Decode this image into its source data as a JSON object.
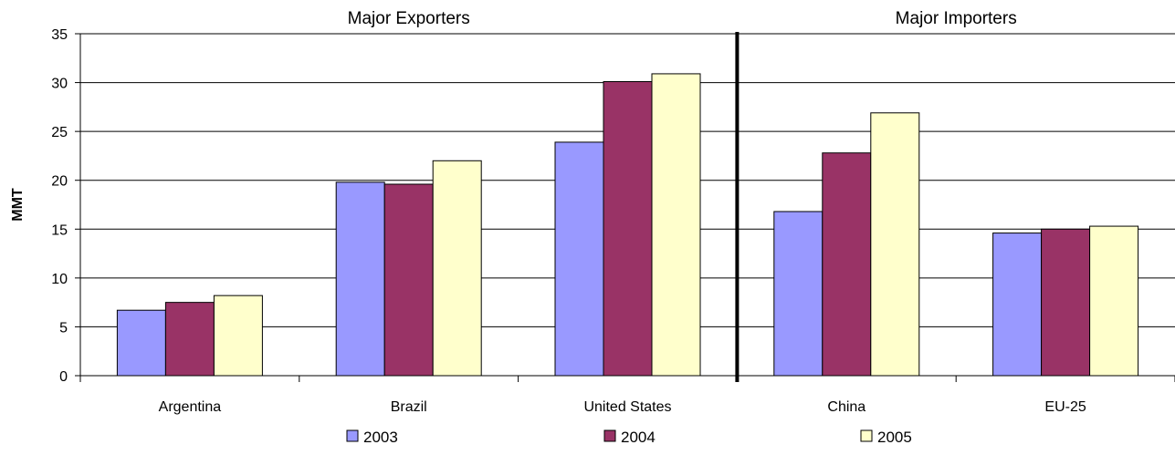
{
  "chart_data": {
    "type": "bar",
    "ylabel": "MMT",
    "ylim": [
      0,
      35
    ],
    "yticks": [
      0,
      5,
      10,
      15,
      20,
      25,
      30,
      35
    ],
    "grid": true,
    "legend": "bottom",
    "categories": [
      "Argentina",
      "Brazil",
      "United States",
      "China",
      "EU-25"
    ],
    "groups": [
      {
        "label": "Major Exporters",
        "categories": [
          "Argentina",
          "Brazil",
          "United States"
        ]
      },
      {
        "label": "Major Importers",
        "categories": [
          "China",
          "EU-25"
        ]
      }
    ],
    "series": [
      {
        "name": "2003",
        "color": "#9999ff",
        "values": [
          6.7,
          19.8,
          23.9,
          16.8,
          14.6
        ]
      },
      {
        "name": "2004",
        "color": "#993366",
        "values": [
          7.5,
          19.6,
          30.1,
          22.8,
          15.0
        ]
      },
      {
        "name": "2005",
        "color": "#ffffcc",
        "values": [
          8.2,
          22.0,
          30.9,
          26.9,
          15.3
        ]
      }
    ]
  }
}
